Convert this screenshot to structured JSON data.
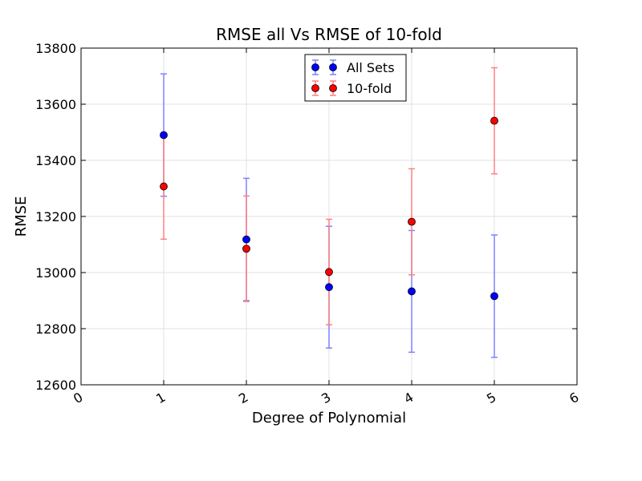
{
  "chart_data": {
    "type": "scatter",
    "title": "RMSE all Vs RMSE of 10-fold",
    "xlabel": "Degree of Polynomial",
    "ylabel": "RMSE",
    "xlim": [
      0,
      6
    ],
    "ylim": [
      12600,
      13800
    ],
    "xticks": [
      "0",
      "1",
      "2",
      "3",
      "4",
      "5",
      "6"
    ],
    "yticks": [
      "12600",
      "12800",
      "13000",
      "13200",
      "13400",
      "13600",
      "13800"
    ],
    "grid": true,
    "legend_position": "top-center",
    "series": [
      {
        "name": "All Sets",
        "color": "#0000ff",
        "errorbar_color": "#8080ff",
        "x": [
          1,
          2,
          3,
          4,
          5
        ],
        "y": [
          13490,
          13118,
          12948,
          12933,
          12916
        ],
        "yerr": [
          218,
          218,
          217,
          217,
          218
        ]
      },
      {
        "name": "10-fold",
        "color": "#ff0000",
        "errorbar_color": "#ff8080",
        "x": [
          1,
          2,
          3,
          4,
          5
        ],
        "y": [
          13307,
          13085,
          13002,
          13181,
          13541
        ],
        "yerr": [
          188,
          188,
          188,
          189,
          189
        ]
      }
    ]
  }
}
